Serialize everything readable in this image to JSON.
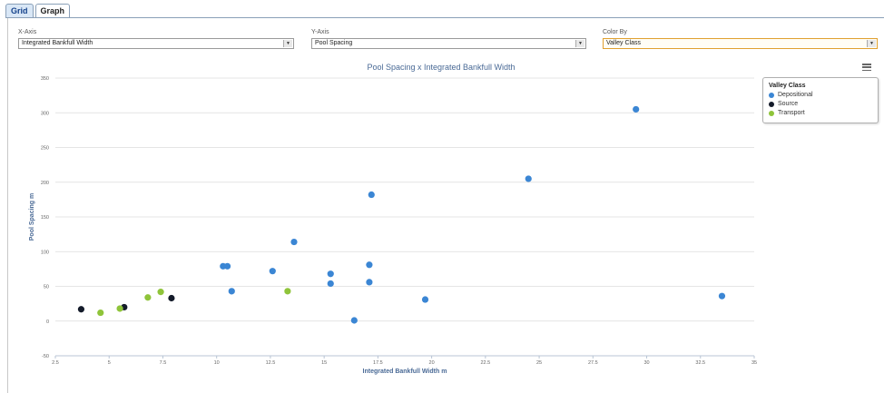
{
  "tabs": [
    {
      "label": "Grid",
      "active": true
    },
    {
      "label": "Graph",
      "active": false
    }
  ],
  "controls": {
    "x_axis": {
      "label": "X-Axis",
      "value": "Integrated Bankfull Width"
    },
    "y_axis": {
      "label": "Y-Axis",
      "value": "Pool Spacing"
    },
    "color_by": {
      "label": "Color By",
      "value": "Valley Class"
    }
  },
  "menu_icon": "hamburger-menu-icon",
  "legend": {
    "title": "Valley Class",
    "items": [
      {
        "label": "Depositional",
        "color": "#3b86d4"
      },
      {
        "label": "Source",
        "color": "#141b2a"
      },
      {
        "label": "Transport",
        "color": "#8fc43a"
      }
    ]
  },
  "chart_data": {
    "type": "scatter",
    "title": "Pool Spacing x Integrated Bankfull Width",
    "xlabel": "Integrated Bankfull Width m",
    "ylabel": "Pool Spacing m",
    "xlim": [
      2.5,
      35
    ],
    "ylim": [
      -50,
      350
    ],
    "xticks": [
      "2.5",
      "5",
      "7.5",
      "10",
      "12.5",
      "15",
      "17.5",
      "20",
      "22.5",
      "25",
      "27.5",
      "30",
      "32.5",
      "35"
    ],
    "yticks": [
      "-50",
      "0",
      "50",
      "100",
      "150",
      "200",
      "250",
      "300",
      "350"
    ],
    "grid": true,
    "legend_position": "top-right",
    "series": [
      {
        "name": "Depositional",
        "color": "#3b86d4",
        "points": [
          [
            10.5,
            79
          ],
          [
            10.7,
            43
          ],
          [
            12.6,
            72
          ],
          [
            13.6,
            114
          ],
          [
            15.3,
            68
          ],
          [
            15.3,
            54
          ],
          [
            16.4,
            1
          ],
          [
            17.1,
            81
          ],
          [
            17.1,
            56
          ],
          [
            17.2,
            182
          ],
          [
            19.7,
            31
          ],
          [
            24.5,
            205
          ],
          [
            29.5,
            305
          ],
          [
            33.5,
            36
          ],
          [
            10.3,
            79
          ]
        ]
      },
      {
        "name": "Source",
        "color": "#141b2a",
        "points": [
          [
            3.7,
            17
          ],
          [
            5.7,
            20
          ],
          [
            7.9,
            33
          ]
        ]
      },
      {
        "name": "Transport",
        "color": "#8fc43a",
        "points": [
          [
            4.6,
            12
          ],
          [
            5.5,
            18
          ],
          [
            6.8,
            34
          ],
          [
            7.4,
            42
          ],
          [
            13.3,
            43
          ]
        ]
      }
    ]
  }
}
